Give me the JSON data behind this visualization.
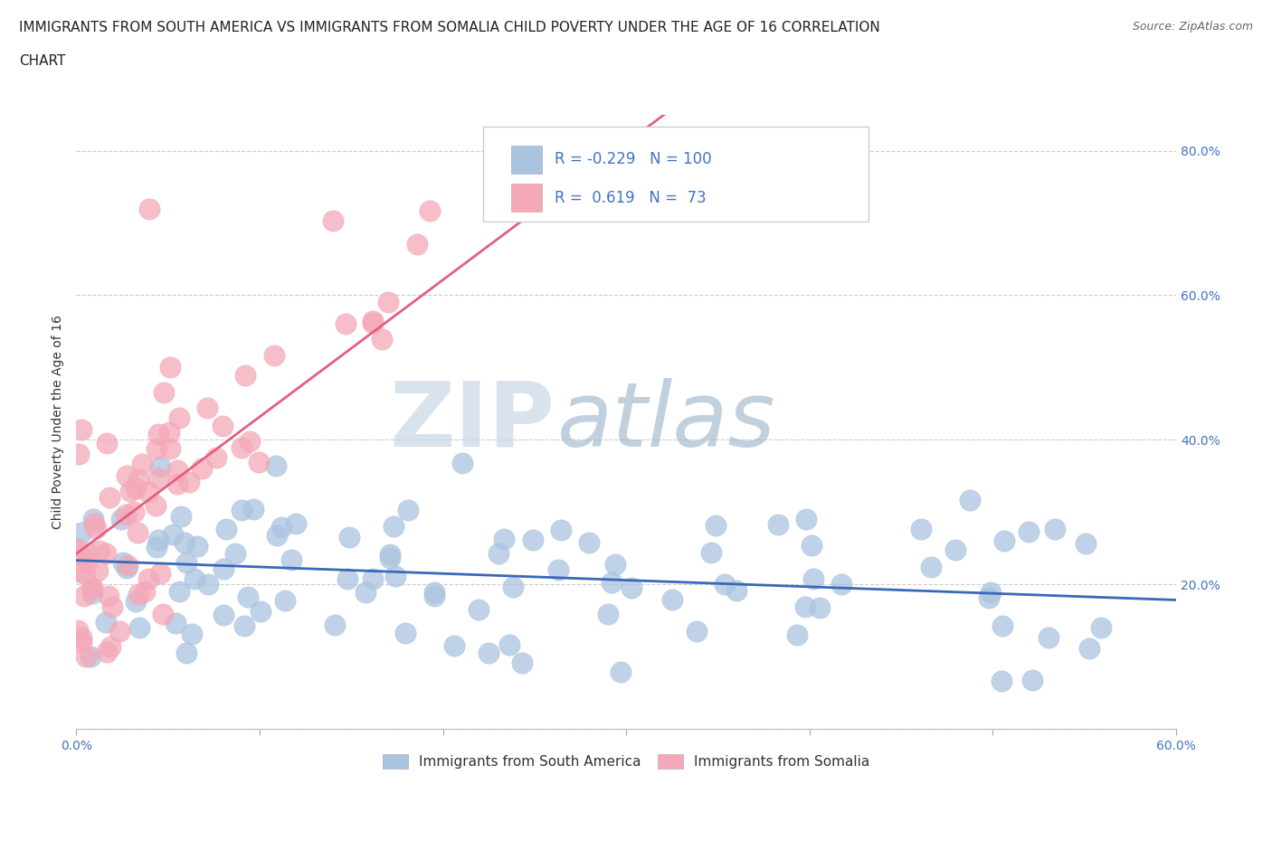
{
  "title_line1": "IMMIGRANTS FROM SOUTH AMERICA VS IMMIGRANTS FROM SOMALIA CHILD POVERTY UNDER THE AGE OF 16 CORRELATION",
  "title_line2": "CHART",
  "source_text": "Source: ZipAtlas.com",
  "ylabel": "Child Poverty Under the Age of 16",
  "watermark_part1": "ZIP",
  "watermark_part2": "atlas",
  "xlim": [
    0.0,
    0.6
  ],
  "ylim": [
    0.0,
    0.85
  ],
  "blue_R": -0.229,
  "blue_N": 100,
  "pink_R": 0.619,
  "pink_N": 73,
  "blue_color": "#aac4e0",
  "pink_color": "#f4a8b8",
  "blue_line_color": "#3a68b8",
  "pink_line_color": "#e06080",
  "legend_label_blue": "Immigrants from South America",
  "legend_label_pink": "Immigrants from Somalia",
  "background_color": "#ffffff",
  "grid_color": "#cccccc",
  "tick_color": "#4472c4",
  "title_fontsize": 11,
  "axis_label_fontsize": 10,
  "tick_fontsize": 10,
  "legend_fontsize": 12
}
